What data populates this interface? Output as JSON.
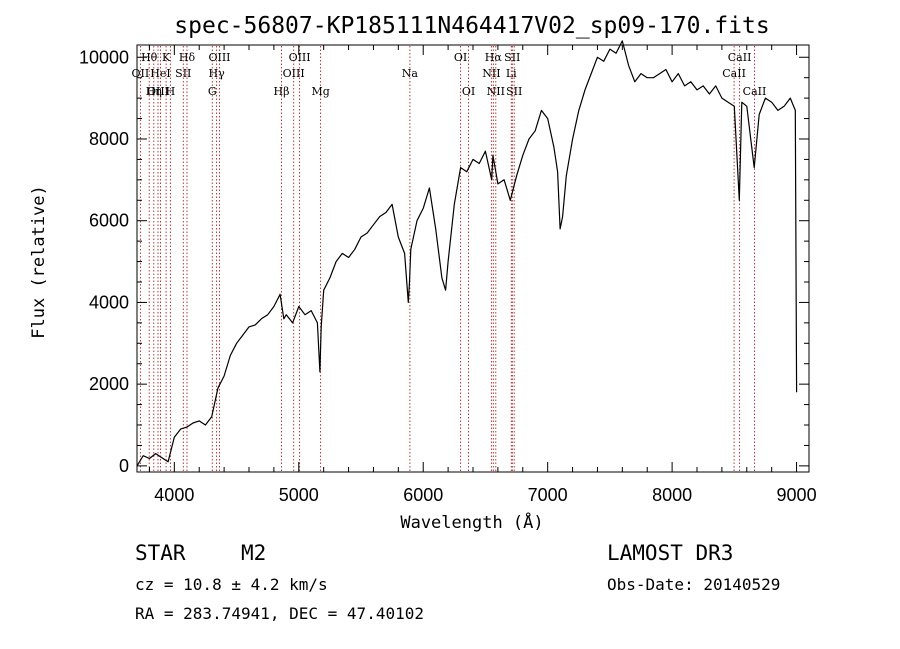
{
  "chart_data": {
    "type": "line",
    "title": "spec-56807-KP185111N464417V02_sp09-170.fits",
    "xlabel": "Wavelength (Å)",
    "ylabel": "Flux (relative)",
    "xlim": [
      3700,
      9100
    ],
    "ylim": [
      -150,
      10300
    ],
    "xticks": [
      4000,
      5000,
      6000,
      7000,
      8000,
      9000
    ],
    "yticks": [
      0,
      2000,
      4000,
      6000,
      8000,
      10000
    ],
    "series": [
      {
        "name": "spectrum",
        "x": [
          3700,
          3750,
          3800,
          3850,
          3900,
          3950,
          4000,
          4050,
          4100,
          4150,
          4200,
          4250,
          4300,
          4350,
          4400,
          4450,
          4500,
          4550,
          4600,
          4650,
          4700,
          4750,
          4800,
          4850,
          4880,
          4900,
          4950,
          5000,
          5050,
          5100,
          5150,
          5170,
          5180,
          5200,
          5250,
          5300,
          5350,
          5400,
          5450,
          5500,
          5550,
          5600,
          5650,
          5700,
          5750,
          5800,
          5850,
          5880,
          5890,
          5900,
          5950,
          6000,
          6050,
          6100,
          6150,
          6180,
          6200,
          6250,
          6300,
          6350,
          6400,
          6450,
          6500,
          6550,
          6560,
          6600,
          6650,
          6700,
          6750,
          6800,
          6850,
          6900,
          6950,
          7000,
          7050,
          7080,
          7100,
          7120,
          7150,
          7200,
          7250,
          7300,
          7350,
          7400,
          7450,
          7500,
          7550,
          7600,
          7650,
          7700,
          7750,
          7800,
          7850,
          7900,
          7950,
          8000,
          8050,
          8100,
          8150,
          8200,
          8250,
          8300,
          8350,
          8400,
          8450,
          8500,
          8540,
          8560,
          8600,
          8660,
          8700,
          8750,
          8800,
          8850,
          8900,
          8950,
          8990,
          9000
        ],
        "values": [
          0,
          250,
          180,
          300,
          200,
          100,
          700,
          900,
          950,
          1050,
          1100,
          1000,
          1200,
          1900,
          2200,
          2700,
          3000,
          3200,
          3400,
          3450,
          3600,
          3700,
          3900,
          4200,
          3600,
          3700,
          3500,
          3900,
          3700,
          3800,
          3500,
          2300,
          3400,
          4300,
          4600,
          5000,
          5200,
          5100,
          5300,
          5600,
          5700,
          5900,
          6100,
          6200,
          6400,
          5600,
          5200,
          4000,
          4500,
          5300,
          6000,
          6300,
          6800,
          5800,
          4600,
          4300,
          5000,
          6400,
          7300,
          7200,
          7500,
          7400,
          7700,
          7000,
          7600,
          6900,
          7000,
          6500,
          7100,
          7600,
          8000,
          8200,
          8700,
          8500,
          7800,
          7200,
          5800,
          6100,
          7100,
          8000,
          8700,
          9200,
          9600,
          10000,
          9900,
          10200,
          10100,
          10400,
          9800,
          9400,
          9600,
          9500,
          9500,
          9600,
          9700,
          9400,
          9600,
          9300,
          9400,
          9200,
          9300,
          9100,
          9300,
          9000,
          8900,
          8800,
          6500,
          8900,
          8800,
          7300,
          8600,
          9000,
          8900,
          8700,
          8800,
          9000,
          8700,
          1800
        ]
      }
    ],
    "lines": [
      {
        "label": "Hθ",
        "wave": 3798,
        "row": 0
      },
      {
        "label": "OII",
        "wave": 3727,
        "row": 1
      },
      {
        "label": "OIII",
        "wave": 3869,
        "row": 2
      },
      {
        "label": "K",
        "wave": 3934,
        "row": 0
      },
      {
        "label": "HeI",
        "wave": 3889,
        "row": 1
      },
      {
        "label": "Hη",
        "wave": 3835,
        "row": 2
      },
      {
        "label": "SII",
        "wave": 4072,
        "row": 1
      },
      {
        "label": "H",
        "wave": 3968,
        "row": 2
      },
      {
        "label": "Hδ",
        "wave": 4102,
        "row": 0
      },
      {
        "label": "OIII",
        "wave": 4363,
        "row": 0
      },
      {
        "label": "Hγ",
        "wave": 4340,
        "row": 1
      },
      {
        "label": "G",
        "wave": 4305,
        "row": 2
      },
      {
        "label": "Hβ",
        "wave": 4861,
        "row": 2
      },
      {
        "label": "OIII",
        "wave": 5007,
        "row": 0
      },
      {
        "label": "OIII",
        "wave": 4959,
        "row": 1
      },
      {
        "label": "Mg",
        "wave": 5175,
        "row": 2
      },
      {
        "label": "Na",
        "wave": 5893,
        "row": 1
      },
      {
        "label": "OI",
        "wave": 6300,
        "row": 0
      },
      {
        "label": "OI",
        "wave": 6364,
        "row": 2
      },
      {
        "label": "Hα",
        "wave": 6563,
        "row": 0
      },
      {
        "label": "NII",
        "wave": 6548,
        "row": 1
      },
      {
        "label": "NII",
        "wave": 6583,
        "row": 2
      },
      {
        "label": "SII",
        "wave": 6716,
        "row": 0
      },
      {
        "label": "Li",
        "wave": 6708,
        "row": 1
      },
      {
        "label": "SII",
        "wave": 6731,
        "row": 2
      },
      {
        "label": "CaII",
        "wave": 8542,
        "row": 0
      },
      {
        "label": "CaII",
        "wave": 8498,
        "row": 1
      },
      {
        "label": "CaII",
        "wave": 8662,
        "row": 2
      }
    ],
    "grid": false,
    "line_color": "#000000",
    "marker_color": "#b22222"
  },
  "info": {
    "object_class": "STAR",
    "subclass": "M2",
    "survey": "LAMOST DR3",
    "redshift": "cz = 10.8 ± 4.2 km/s",
    "obs_date": "Obs-Date: 20140529",
    "coords": "RA = 283.74941, DEC =  47.40102"
  }
}
